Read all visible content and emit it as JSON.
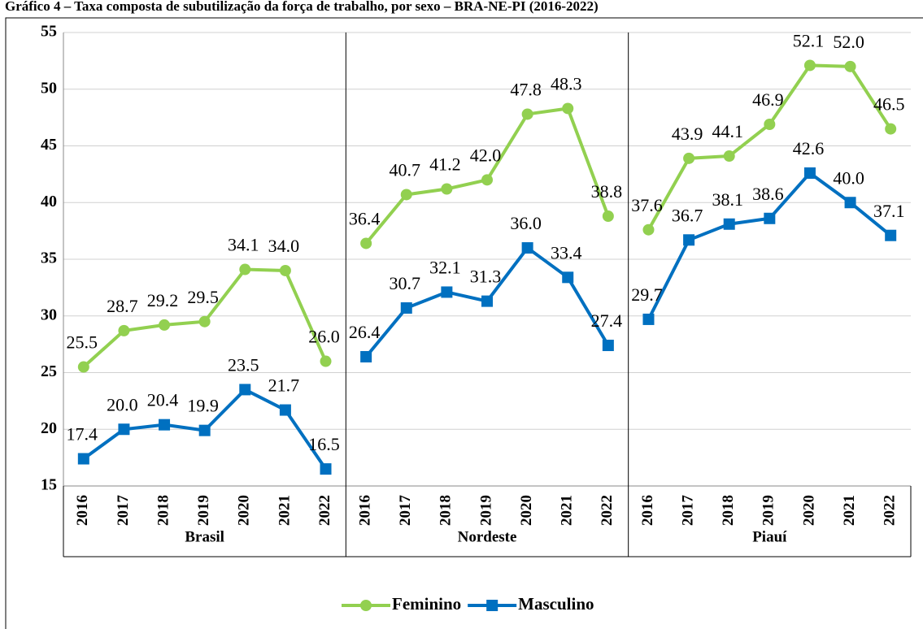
{
  "chart_data": {
    "type": "line",
    "title": "Gráfico 4 – Taxa composta de subutilização da força de trabalho, por sexo – BRA-NE-PI (2016-2022)",
    "groups": [
      "Brasil",
      "Nordeste",
      "Piauí"
    ],
    "categories": [
      "2016",
      "2017",
      "2018",
      "2019",
      "2020",
      "2021",
      "2022",
      "2016",
      "2017",
      "2018",
      "2019",
      "2020",
      "2021",
      "2022",
      "2016",
      "2017",
      "2018",
      "2019",
      "2020",
      "2021",
      "2022"
    ],
    "series": [
      {
        "name": "Feminino",
        "color": "#92d050",
        "marker": "circle",
        "values": [
          25.5,
          28.7,
          29.2,
          29.5,
          34.1,
          34.0,
          26.0,
          36.4,
          40.7,
          41.2,
          42.0,
          47.8,
          48.3,
          38.8,
          37.6,
          43.9,
          44.1,
          46.9,
          52.1,
          52.0,
          46.5
        ],
        "value_labels": [
          "25.5",
          "28.7",
          "29.2",
          "29.5",
          "34.1",
          "34.0",
          "26.0",
          "36.4",
          "40.7",
          "41.2",
          "42.0",
          "47.8",
          "48.3",
          "38.8",
          "37.6",
          "43.9",
          "44.1",
          "46.9",
          "52.1",
          "52.0",
          "46.5"
        ]
      },
      {
        "name": "Masculino",
        "color": "#0070c0",
        "marker": "square",
        "values": [
          17.4,
          20.0,
          20.4,
          19.9,
          23.5,
          21.7,
          16.5,
          26.4,
          30.7,
          32.1,
          31.3,
          36.0,
          33.4,
          27.4,
          29.7,
          36.7,
          38.1,
          38.6,
          42.6,
          40.0,
          37.1
        ],
        "value_labels": [
          "17.4",
          "20.0",
          "20.4",
          "19.9",
          "23.5",
          "21.7",
          "16.5",
          "26.4",
          "30.7",
          "32.1",
          "31.3",
          "36.0",
          "33.4",
          "27.4",
          "29.7",
          "36.7",
          "38.1",
          "38.6",
          "42.6",
          "40.0",
          "37.1"
        ]
      }
    ],
    "ylim": [
      15,
      55
    ],
    "yticks": [
      15,
      20,
      25,
      30,
      35,
      40,
      45,
      50,
      55
    ],
    "grid": true,
    "legend": "bottom"
  }
}
